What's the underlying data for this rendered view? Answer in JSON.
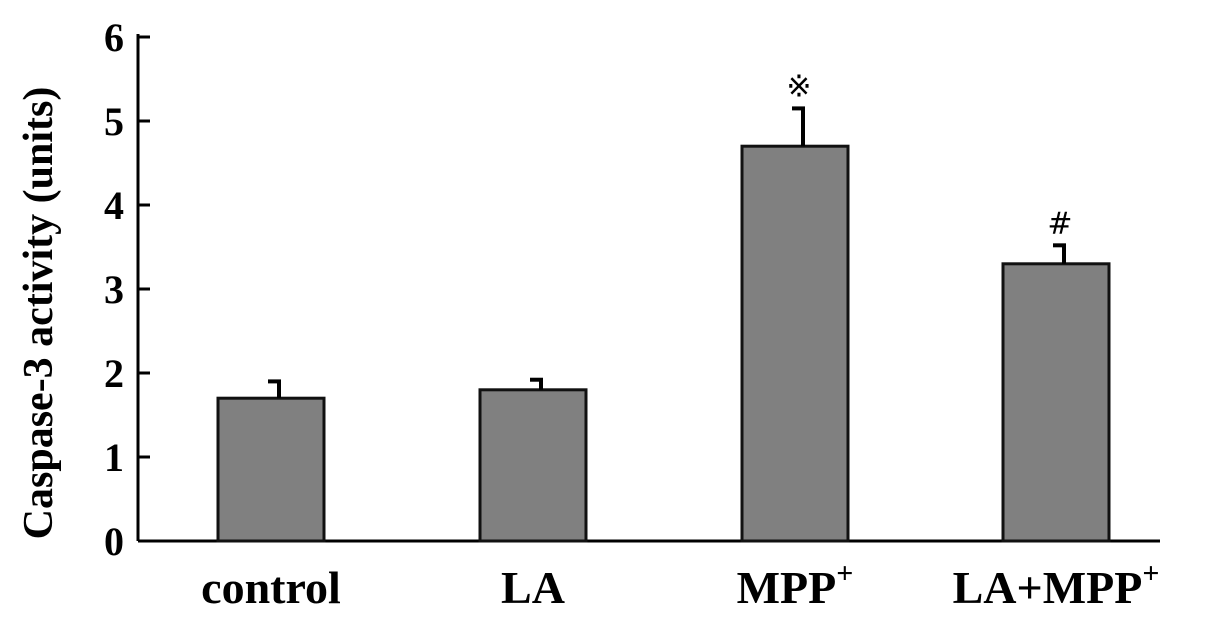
{
  "chart_data": {
    "type": "bar",
    "categories": [
      {
        "label": "control",
        "sup": ""
      },
      {
        "label": "LA",
        "sup": ""
      },
      {
        "label": "MPP",
        "sup": "+"
      },
      {
        "label": "LA+MPP",
        "sup": "+"
      }
    ],
    "values": [
      1.7,
      1.8,
      4.7,
      3.3
    ],
    "errors": [
      0.2,
      0.12,
      0.45,
      0.22
    ],
    "annotations": [
      "",
      "",
      "※",
      "#"
    ],
    "ylabel": "Caspase-3 activity (units)",
    "ylim": [
      0,
      6
    ],
    "yticks": [
      "0",
      "1",
      "2",
      "3",
      "4",
      "5",
      "6"
    ],
    "bar_color": "#808080",
    "grid": false
  }
}
